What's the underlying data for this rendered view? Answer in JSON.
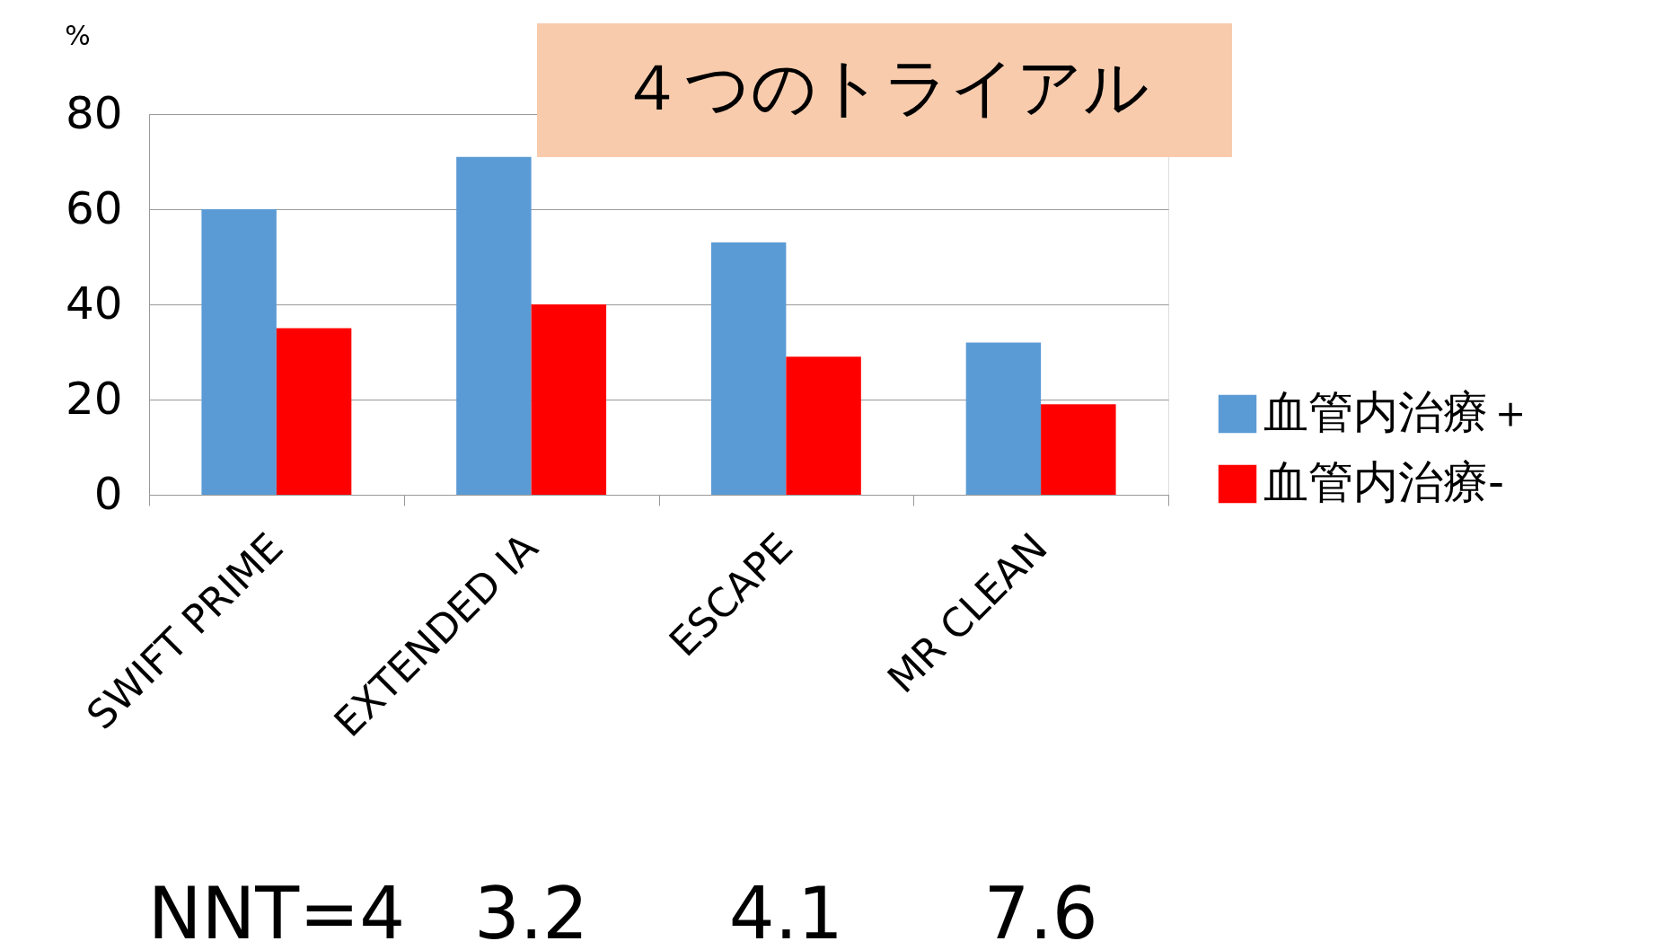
{
  "chart_data": {
    "type": "bar",
    "title": "４つのトライアル",
    "ylabel": "%",
    "categories": [
      "SWIFT PRIME",
      "EXTENDED IA",
      "ESCAPE",
      "MR CLEAN"
    ],
    "series": [
      {
        "name": "血管内治療＋",
        "color": "#5b9bd5",
        "values": [
          60,
          71,
          53,
          32
        ]
      },
      {
        "name": "血管内治療-",
        "color": "#ff0000",
        "values": [
          35,
          40,
          29,
          19
        ]
      }
    ],
    "ylim": [
      0,
      80
    ],
    "yticks": [
      0,
      20,
      40,
      60,
      80
    ],
    "grid": "y",
    "legend": "right",
    "annotations": [
      "NNT=4",
      "3.2",
      "4.1",
      "7.6"
    ]
  }
}
